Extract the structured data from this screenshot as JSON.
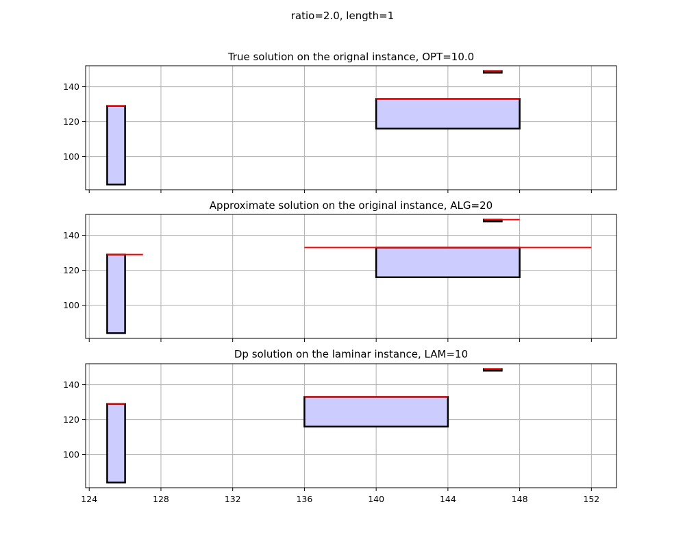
{
  "figure_title": "ratio=2.0, length=1",
  "colors": {
    "box_fill": "#ccccff",
    "box_edge": "#000000",
    "red_line": "#ff0000",
    "grid": "#b0b0b0"
  },
  "chart_data": [
    {
      "type": "bar",
      "title": "True solution on the orignal instance, OPT=10.0",
      "xlim": [
        123.8,
        153.4
      ],
      "ylim": [
        81,
        152
      ],
      "xticks": [
        124,
        128,
        132,
        136,
        140,
        144,
        148,
        152
      ],
      "yticks": [
        100,
        120,
        140
      ],
      "show_xtick_labels": false,
      "grid": true,
      "boxes": [
        {
          "x0": 125,
          "x1": 126,
          "y0": 84,
          "y1": 129
        },
        {
          "x0": 140,
          "x1": 148,
          "y0": 116,
          "y1": 133
        },
        {
          "x0": 146,
          "x1": 147,
          "y0": 148,
          "y1": 149
        }
      ],
      "red_lines": [
        {
          "x0": 125,
          "x1": 126,
          "y": 129
        },
        {
          "x0": 140,
          "x1": 148,
          "y": 133
        },
        {
          "x0": 146,
          "x1": 147,
          "y": 149
        }
      ]
    },
    {
      "type": "bar",
      "title": "Approximate solution on the original instance, ALG=20",
      "xlim": [
        123.8,
        153.4
      ],
      "ylim": [
        81,
        152
      ],
      "xticks": [
        124,
        128,
        132,
        136,
        140,
        144,
        148,
        152
      ],
      "yticks": [
        100,
        120,
        140
      ],
      "show_xtick_labels": false,
      "grid": true,
      "boxes": [
        {
          "x0": 125,
          "x1": 126,
          "y0": 84,
          "y1": 129
        },
        {
          "x0": 140,
          "x1": 148,
          "y0": 116,
          "y1": 133
        },
        {
          "x0": 146,
          "x1": 147,
          "y0": 148,
          "y1": 149
        }
      ],
      "red_lines": [
        {
          "x0": 125,
          "x1": 127,
          "y": 129
        },
        {
          "x0": 136,
          "x1": 152,
          "y": 133
        },
        {
          "x0": 146,
          "x1": 148,
          "y": 149
        }
      ]
    },
    {
      "type": "bar",
      "title": "Dp solution on the laminar instance, LAM=10",
      "xlim": [
        123.8,
        153.4
      ],
      "ylim": [
        81,
        152
      ],
      "xticks": [
        124,
        128,
        132,
        136,
        140,
        144,
        148,
        152
      ],
      "yticks": [
        100,
        120,
        140
      ],
      "show_xtick_labels": true,
      "grid": true,
      "boxes": [
        {
          "x0": 125,
          "x1": 126,
          "y0": 84,
          "y1": 129
        },
        {
          "x0": 136,
          "x1": 144,
          "y0": 116,
          "y1": 133
        },
        {
          "x0": 146,
          "x1": 147,
          "y0": 148,
          "y1": 149
        }
      ],
      "red_lines": [
        {
          "x0": 125,
          "x1": 126,
          "y": 129
        },
        {
          "x0": 136,
          "x1": 144,
          "y": 133
        },
        {
          "x0": 146,
          "x1": 147,
          "y": 149
        }
      ]
    }
  ]
}
